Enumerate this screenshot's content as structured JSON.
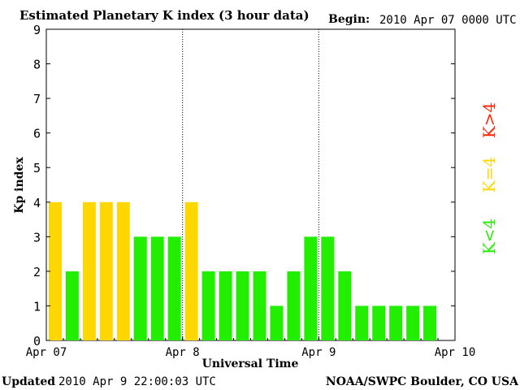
{
  "header": {
    "title": "Estimated Planetary K index (3 hour data)",
    "begin_label": "Begin:",
    "begin_value": "2010 Apr 07 0000 UTC"
  },
  "footer": {
    "updated_label": "Updated",
    "updated_value": "2010 Apr  9 22:00:03 UTC",
    "source": "NOAA/SWPC Boulder, CO USA"
  },
  "legend": {
    "items": [
      {
        "label": "K<4",
        "color": "#22ee00"
      },
      {
        "label": "K=4",
        "color": "#ffd700"
      },
      {
        "label": "K>4",
        "color": "#ff2200"
      }
    ]
  },
  "chart_data": {
    "type": "bar",
    "title": "Estimated Planetary K index (3 hour data)",
    "xlabel": "Universal Time",
    "ylabel": "Kp index",
    "ylim": [
      0,
      9
    ],
    "yticks": [
      "0",
      "1",
      "2",
      "3",
      "4",
      "5",
      "6",
      "7",
      "8",
      "9"
    ],
    "xticks": [
      "Apr 07",
      "Apr 8",
      "Apr 9",
      "Apr 10"
    ],
    "day_separators": true,
    "grid": false,
    "interval_hours": 3,
    "values": [
      4,
      2,
      4,
      4,
      4,
      3,
      3,
      3,
      4,
      2,
      2,
      2,
      2,
      1,
      2,
      3,
      3,
      2,
      1,
      1,
      1,
      1,
      1
    ],
    "colors": {
      "below4": "#22ee00",
      "equal4": "#ffd700",
      "above4": "#ff2200"
    }
  }
}
